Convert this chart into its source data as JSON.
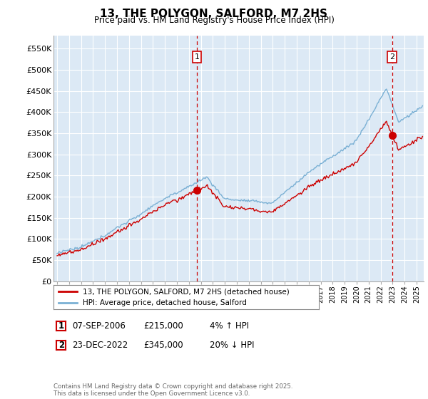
{
  "title": "13, THE POLYGON, SALFORD, M7 2HS",
  "subtitle": "Price paid vs. HM Land Registry's House Price Index (HPI)",
  "ylabel_ticks": [
    "£0",
    "£50K",
    "£100K",
    "£150K",
    "£200K",
    "£250K",
    "£300K",
    "£350K",
    "£400K",
    "£450K",
    "£500K",
    "£550K"
  ],
  "ylim": [
    0,
    580000
  ],
  "xlim_start": 1994.7,
  "xlim_end": 2025.6,
  "legend_line1": "13, THE POLYGON, SALFORD, M7 2HS (detached house)",
  "legend_line2": "HPI: Average price, detached house, Salford",
  "annotation1_label": "1",
  "annotation1_date": "07-SEP-2006",
  "annotation1_price": "£215,000",
  "annotation1_hpi": "4% ↑ HPI",
  "annotation2_label": "2",
  "annotation2_date": "23-DEC-2022",
  "annotation2_price": "£345,000",
  "annotation2_hpi": "20% ↓ HPI",
  "footnote": "Contains HM Land Registry data © Crown copyright and database right 2025.\nThis data is licensed under the Open Government Licence v3.0.",
  "vline1_x": 2006.68,
  "vline2_x": 2022.97,
  "sale1_x": 2006.68,
  "sale1_y": 215000,
  "sale2_x": 2022.97,
  "sale2_y": 345000,
  "line_color_red": "#cc0000",
  "line_color_blue": "#7ab0d4",
  "vline_color": "#cc0000",
  "background_color": "#ffffff",
  "chart_bg_color": "#dce9f5",
  "grid_color": "#ffffff"
}
